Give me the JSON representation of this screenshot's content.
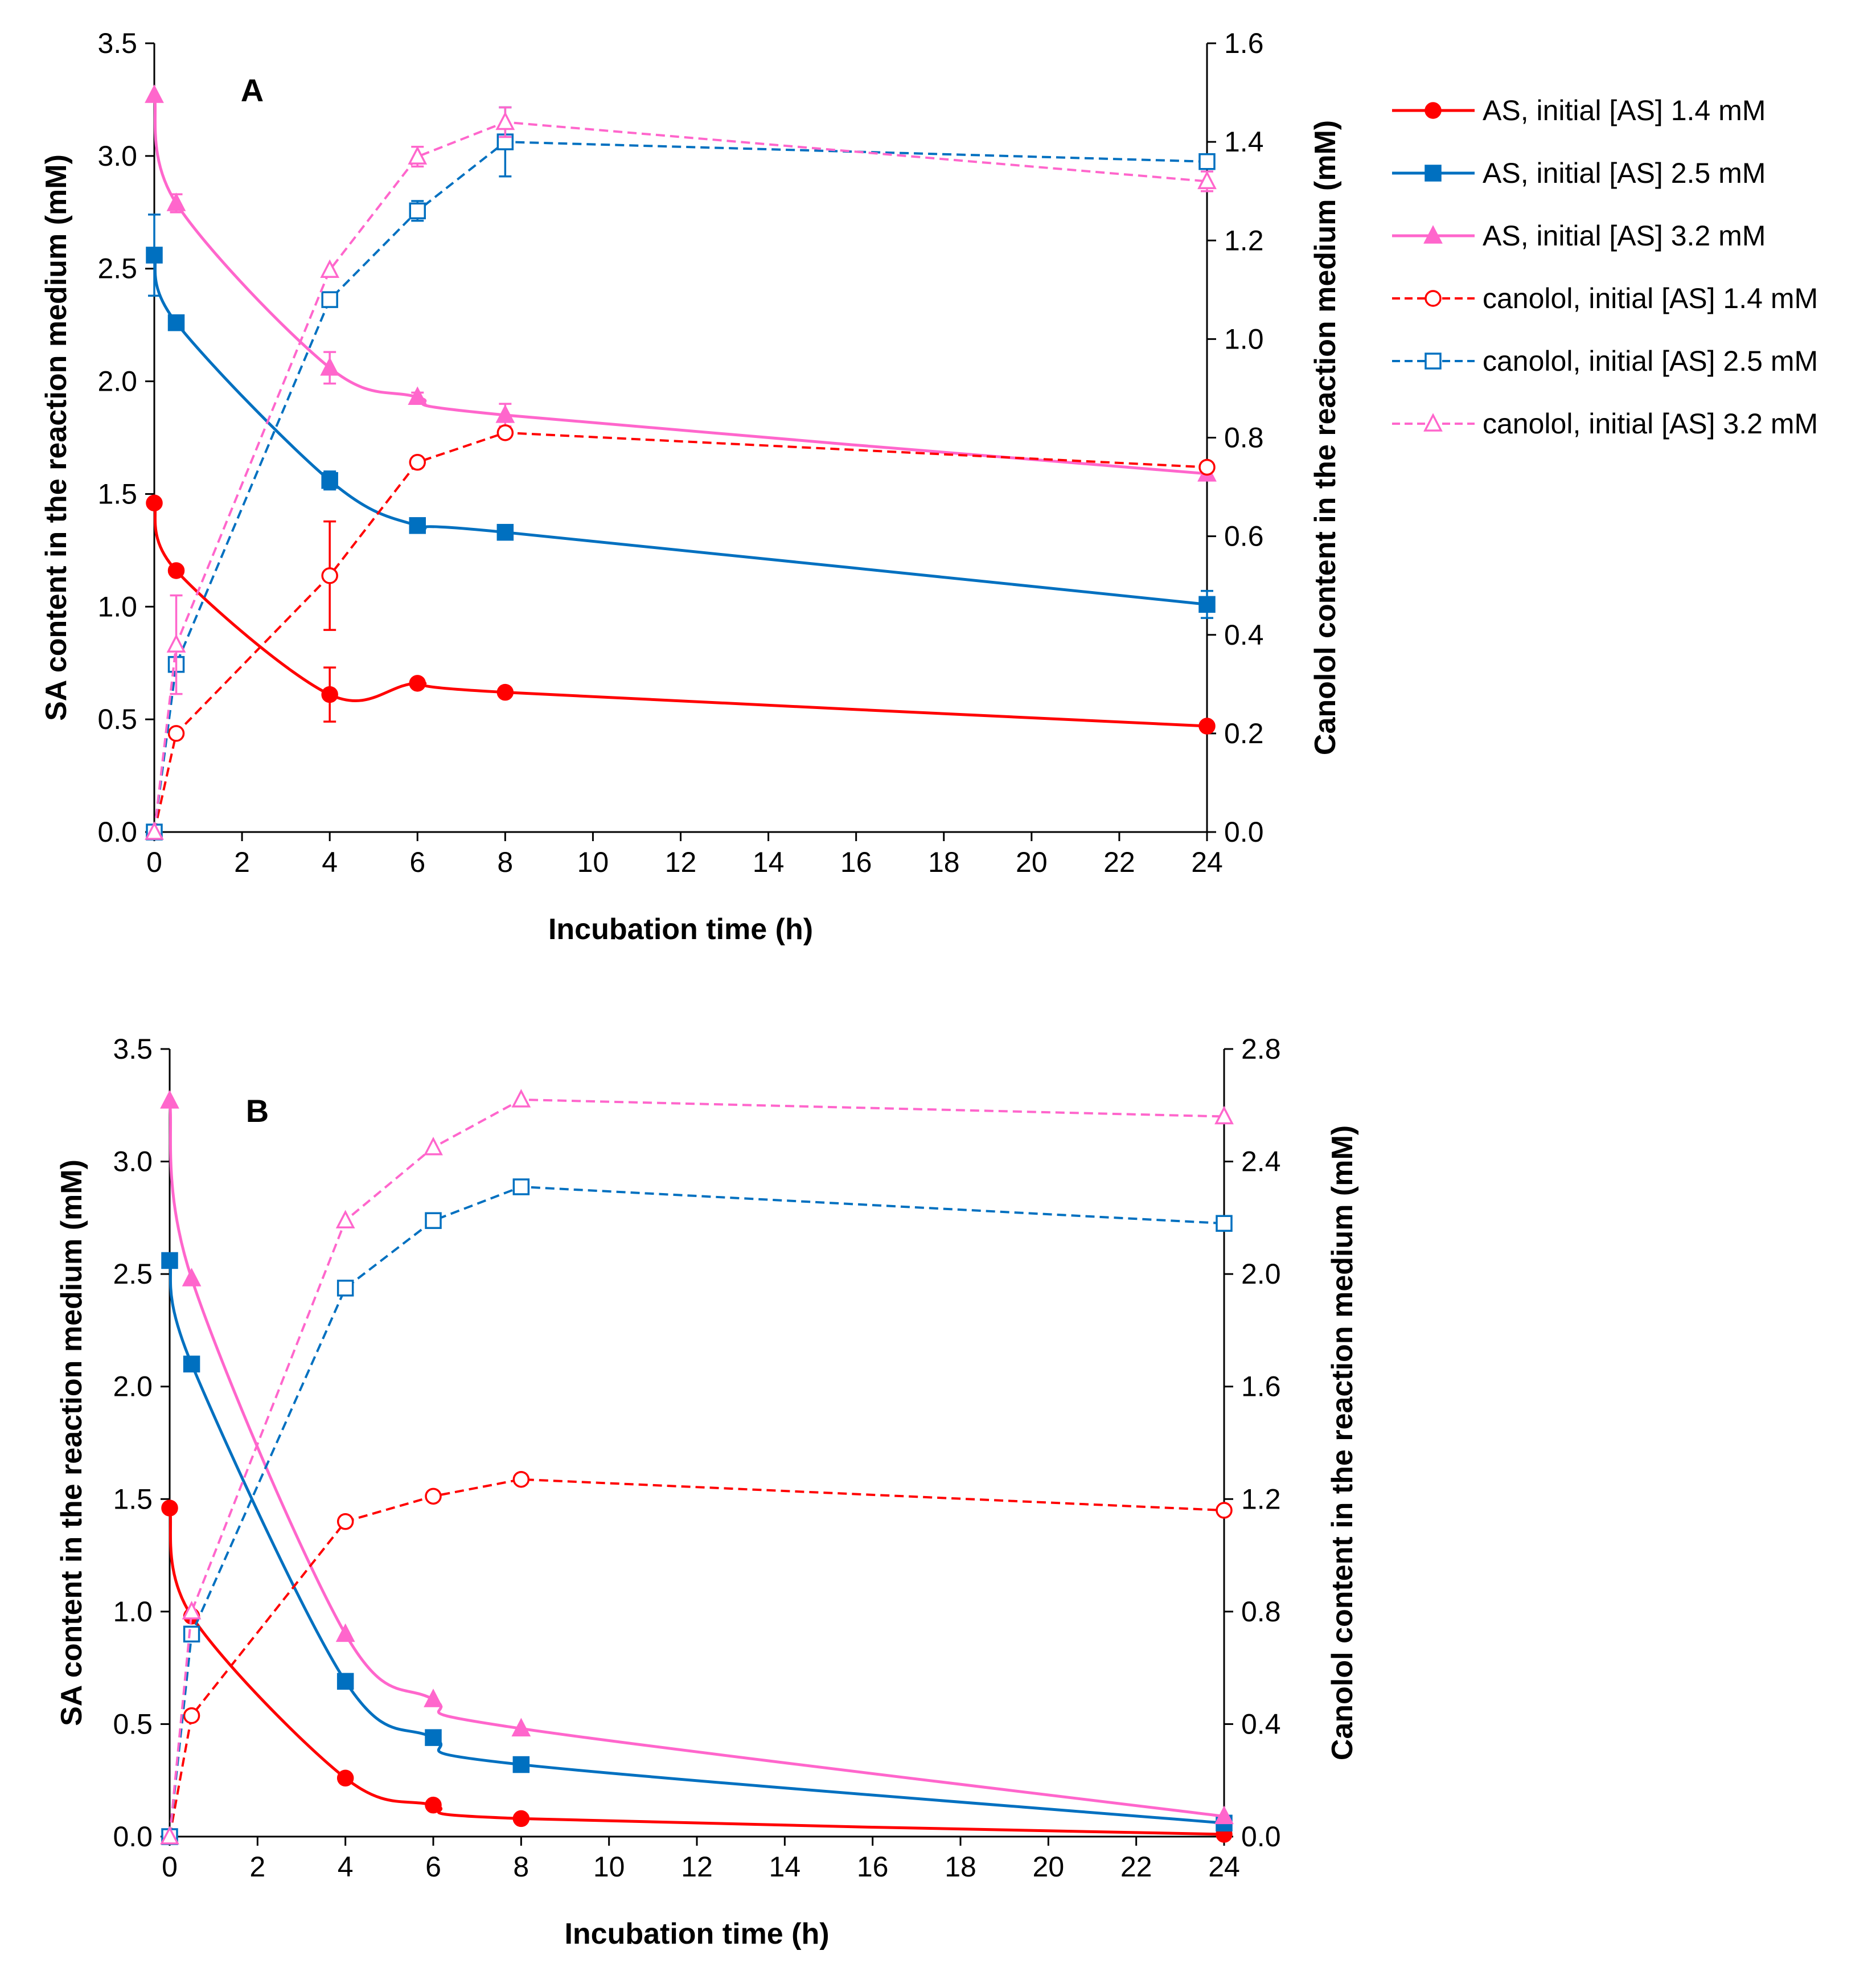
{
  "figure": {
    "legend": [
      {
        "label": "AS, initial [AS] 1.4 mM",
        "color": "#ff0000",
        "marker": "circle",
        "filled": true,
        "dashed": false
      },
      {
        "label": "AS, initial [AS] 2.5 mM",
        "color": "#0070c0",
        "marker": "square",
        "filled": true,
        "dashed": false
      },
      {
        "label": "AS, initial [AS] 3.2 mM",
        "color": "#ff66cc",
        "marker": "triangle",
        "filled": true,
        "dashed": false
      },
      {
        "label": "canolol, initial [AS] 1.4 mM",
        "color": "#ff0000",
        "marker": "circle",
        "filled": false,
        "dashed": true
      },
      {
        "label": "canolol, initial [AS] 2.5 mM",
        "color": "#0070c0",
        "marker": "square",
        "filled": false,
        "dashed": true
      },
      {
        "label": "canolol, initial [AS] 3.2 mM",
        "color": "#ff66cc",
        "marker": "triangle",
        "filled": false,
        "dashed": true
      }
    ]
  },
  "chart_data": [
    {
      "type": "line",
      "panel_label": "A",
      "xlabel": "Incubation time (h)",
      "ylabel": "SA content in the reaction medium (mM)",
      "y2label": "Canolol content in the reaction medium (mM)",
      "xlim": [
        0,
        24
      ],
      "ylim": [
        0,
        3.5
      ],
      "y2lim": [
        0,
        1.6
      ],
      "xticks": [
        "0",
        "2",
        "4",
        "6",
        "8",
        "10",
        "12",
        "14",
        "16",
        "18",
        "20",
        "22",
        "24"
      ],
      "yticks": [
        "0.0",
        "0.5",
        "1.0",
        "1.5",
        "2.0",
        "2.5",
        "3.0",
        "3.5"
      ],
      "y2ticks": [
        "0.0",
        "0.2",
        "0.4",
        "0.6",
        "0.8",
        "1.0",
        "1.2",
        "1.4",
        "1.6"
      ],
      "x": [
        0,
        0.5,
        4,
        6,
        8,
        24
      ],
      "series": [
        {
          "name": "AS, initial [AS] 1.4 mM",
          "axis": "left",
          "color": "#ff0000",
          "marker": "circle",
          "filled": true,
          "dashed": false,
          "values": [
            1.46,
            1.16,
            0.61,
            0.66,
            0.62,
            0.47
          ],
          "errors": [
            0,
            0,
            0.12,
            0.02,
            0,
            0
          ]
        },
        {
          "name": "AS, initial [AS] 2.5 mM",
          "axis": "left",
          "color": "#0070c0",
          "marker": "square",
          "filled": true,
          "dashed": false,
          "values": [
            2.56,
            2.26,
            1.56,
            1.36,
            1.33,
            1.01
          ],
          "errors": [
            0.18,
            0,
            0.04,
            0,
            0,
            0.06
          ]
        },
        {
          "name": "AS, initial [AS] 3.2 mM",
          "axis": "left",
          "color": "#ff66cc",
          "marker": "triangle",
          "filled": true,
          "dashed": false,
          "values": [
            3.27,
            2.79,
            2.06,
            1.93,
            1.85,
            1.59
          ],
          "errors": [
            0,
            0.04,
            0.07,
            0.02,
            0.05,
            0
          ]
        },
        {
          "name": "canolol, initial [AS] 1.4 mM",
          "axis": "right",
          "color": "#ff0000",
          "marker": "circle",
          "filled": false,
          "dashed": true,
          "values": [
            0,
            0.2,
            0.52,
            0.75,
            0.81,
            0.74
          ],
          "errors": [
            0,
            0,
            0.11,
            0,
            0,
            0
          ]
        },
        {
          "name": "canolol, initial [AS] 2.5 mM",
          "axis": "right",
          "color": "#0070c0",
          "marker": "square",
          "filled": false,
          "dashed": true,
          "values": [
            0,
            0.34,
            1.08,
            1.26,
            1.4,
            1.36
          ],
          "errors": [
            0,
            0,
            0,
            0.02,
            0.07,
            0
          ]
        },
        {
          "name": "canolol, initial [AS] 3.2 mM",
          "axis": "right",
          "color": "#ff66cc",
          "marker": "triangle",
          "filled": false,
          "dashed": true,
          "values": [
            0,
            0.38,
            1.14,
            1.37,
            1.44,
            1.32
          ],
          "errors": [
            0,
            0.1,
            0,
            0.02,
            0.03,
            0.02
          ]
        }
      ]
    },
    {
      "type": "line",
      "panel_label": "B",
      "xlabel": "Incubation time (h)",
      "ylabel": "SA content in the reaction medium (mM)",
      "y2label": "Canolol content in the reaction medium (mM)",
      "xlim": [
        0,
        24
      ],
      "ylim": [
        0,
        3.5
      ],
      "y2lim": [
        0,
        2.8
      ],
      "xticks": [
        "0",
        "2",
        "4",
        "6",
        "8",
        "10",
        "12",
        "14",
        "16",
        "18",
        "20",
        "22",
        "24"
      ],
      "yticks": [
        "0.0",
        "0.5",
        "1.0",
        "1.5",
        "2.0",
        "2.5",
        "3.0",
        "3.5"
      ],
      "y2ticks": [
        "0.0",
        "0.4",
        "0.8",
        "1.2",
        "1.6",
        "2.0",
        "2.4",
        "2.8"
      ],
      "x": [
        0,
        0.5,
        4,
        6,
        8,
        24
      ],
      "series": [
        {
          "name": "AS, initial [AS] 1.4 mM",
          "axis": "left",
          "color": "#ff0000",
          "marker": "circle",
          "filled": true,
          "dashed": false,
          "values": [
            1.46,
            0.98,
            0.26,
            0.14,
            0.08,
            0.01
          ],
          "errors": [
            0,
            0,
            0,
            0,
            0,
            0
          ]
        },
        {
          "name": "AS, initial [AS] 2.5 mM",
          "axis": "left",
          "color": "#0070c0",
          "marker": "square",
          "filled": true,
          "dashed": false,
          "values": [
            2.56,
            2.1,
            0.69,
            0.44,
            0.32,
            0.06
          ],
          "errors": [
            0,
            0,
            0,
            0,
            0,
            0
          ]
        },
        {
          "name": "AS, initial [AS] 3.2 mM",
          "axis": "left",
          "color": "#ff66cc",
          "marker": "triangle",
          "filled": true,
          "dashed": false,
          "values": [
            3.27,
            2.48,
            0.9,
            0.61,
            0.48,
            0.09
          ],
          "errors": [
            0,
            0,
            0,
            0,
            0,
            0
          ]
        },
        {
          "name": "canolol, initial [AS] 1.4 mM",
          "axis": "right",
          "color": "#ff0000",
          "marker": "circle",
          "filled": false,
          "dashed": true,
          "values": [
            0,
            0.43,
            1.12,
            1.21,
            1.27,
            1.16
          ],
          "errors": [
            0,
            0,
            0,
            0,
            0,
            0
          ]
        },
        {
          "name": "canolol, initial [AS] 2.5 mM",
          "axis": "right",
          "color": "#0070c0",
          "marker": "square",
          "filled": false,
          "dashed": true,
          "values": [
            0,
            0.72,
            1.95,
            2.19,
            2.31,
            2.18
          ],
          "errors": [
            0,
            0,
            0,
            0,
            0,
            0
          ]
        },
        {
          "name": "canolol, initial [AS] 3.2 mM",
          "axis": "right",
          "color": "#ff66cc",
          "marker": "triangle",
          "filled": false,
          "dashed": true,
          "values": [
            0,
            0.8,
            2.19,
            2.45,
            2.62,
            2.56
          ],
          "errors": [
            0,
            0,
            0,
            0,
            0,
            0
          ]
        }
      ]
    }
  ]
}
